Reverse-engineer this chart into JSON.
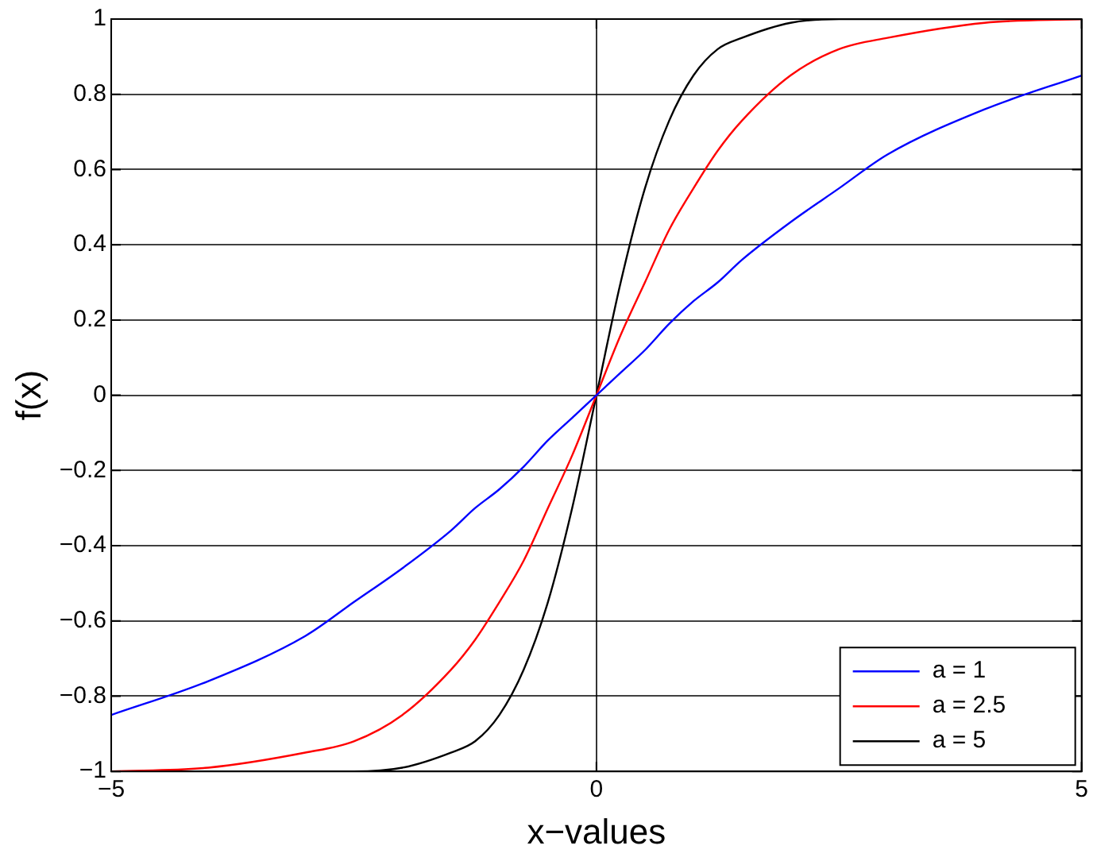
{
  "chart_data": {
    "type": "line",
    "xlabel": "x−values",
    "ylabel": "f(x)",
    "x": [
      -5,
      -4,
      -3,
      -2.5,
      -2,
      -1.5,
      -1.25,
      -1,
      -0.75,
      -0.5,
      -0.25,
      0,
      0.25,
      0.5,
      0.75,
      1,
      1.25,
      1.5,
      2,
      2.5,
      3,
      4,
      5
    ],
    "series": [
      {
        "name": "a = 1",
        "color": "#0000ff",
        "values": [
          -0.85,
          -0.76,
          -0.64,
          -0.55,
          -0.46,
          -0.36,
          -0.3,
          -0.25,
          -0.19,
          -0.12,
          -0.06,
          0,
          0.06,
          0.12,
          0.19,
          0.25,
          0.3,
          0.36,
          0.46,
          0.55,
          0.64,
          0.76,
          0.85
        ]
      },
      {
        "name": "a = 2.5",
        "color": "#ff0000",
        "values": [
          -1,
          -0.99,
          -0.95,
          -0.92,
          -0.85,
          -0.73,
          -0.65,
          -0.55,
          -0.44,
          -0.3,
          -0.16,
          0,
          0.16,
          0.3,
          0.44,
          0.55,
          0.65,
          0.73,
          0.85,
          0.92,
          0.95,
          0.99,
          1
        ]
      },
      {
        "name": "a = 5",
        "color": "#000000",
        "values": [
          -1,
          -1,
          -1,
          -1,
          -0.99,
          -0.95,
          -0.92,
          -0.85,
          -0.73,
          -0.55,
          -0.3,
          0,
          0.3,
          0.55,
          0.73,
          0.85,
          0.92,
          0.95,
          0.99,
          1,
          1,
          1,
          1
        ]
      }
    ],
    "xlim": [
      -5,
      5
    ],
    "xticks": [
      {
        "value": -5,
        "label": "−5"
      },
      0,
      5
    ],
    "ylim": [
      -1,
      1
    ],
    "yticks": [
      {
        "value": -1,
        "label": "−1"
      },
      {
        "value": -0.8,
        "label": "−0.8"
      },
      {
        "value": -0.6,
        "label": "−0.6"
      },
      {
        "value": -0.4,
        "label": "−0.4"
      },
      {
        "value": -0.2,
        "label": "−0.2"
      },
      0,
      0.2,
      0.4,
      0.6,
      0.8,
      1
    ],
    "grid": true,
    "legend": "bottom right",
    "line_style": "solid",
    "marker": "none"
  }
}
